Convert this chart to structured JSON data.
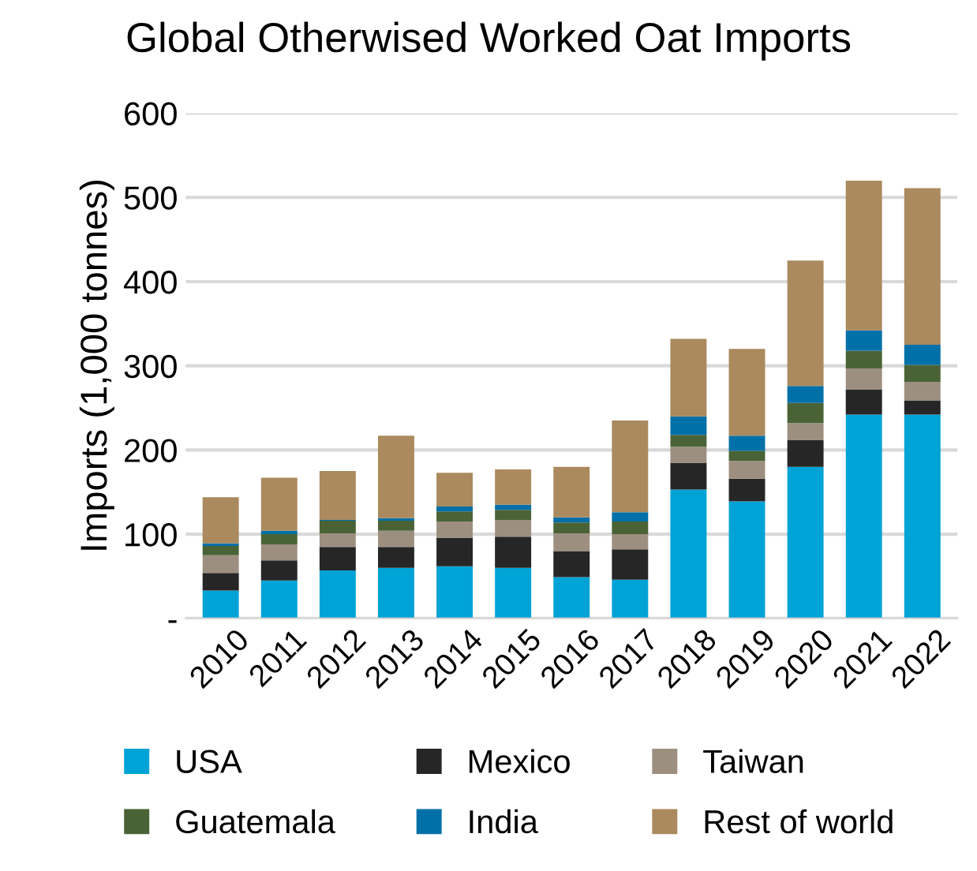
{
  "chart_data": {
    "type": "bar",
    "title": "Global Otherwised Worked Oat Imports",
    "ylabel": "Imports (1,000 tonnes)",
    "categories": [
      "2010",
      "2011",
      "2012",
      "2013",
      "2014",
      "2015",
      "2016",
      "2017",
      "2018",
      "2019",
      "2020",
      "2021",
      "2022"
    ],
    "stacked": true,
    "ylim": [
      0,
      600
    ],
    "yticks": [
      {
        "value": 0,
        "label": "-"
      },
      100,
      200,
      300,
      400,
      500,
      600
    ],
    "grid": "y",
    "legend": "bottom",
    "series": [
      {
        "name": "USA",
        "color": "#00a3d6",
        "values": [
          33,
          45,
          57,
          60,
          62,
          60,
          49,
          46,
          153,
          139,
          180,
          242,
          242
        ]
      },
      {
        "name": "Mexico",
        "color": "#262626",
        "values": [
          21,
          24,
          28,
          25,
          34,
          37,
          31,
          36,
          32,
          27,
          32,
          30,
          17
        ]
      },
      {
        "name": "Taiwan",
        "color": "#9d8f80",
        "values": [
          21,
          19,
          16,
          19,
          19,
          20,
          21,
          18,
          19,
          21,
          20,
          25,
          22
        ]
      },
      {
        "name": "Guatemala",
        "color": "#4a6336",
        "values": [
          11,
          12,
          15,
          12,
          12,
          12,
          13,
          15,
          14,
          12,
          24,
          21,
          20
        ]
      },
      {
        "name": "India",
        "color": "#0070a8",
        "values": [
          3,
          4,
          1,
          3,
          6,
          6,
          6,
          11,
          22,
          18,
          20,
          24,
          24
        ]
      },
      {
        "name": "Rest of world",
        "color": "#aa8a5e",
        "values": [
          55,
          63,
          58,
          98,
          40,
          42,
          60,
          109,
          92,
          103,
          149,
          178,
          186
        ]
      }
    ]
  }
}
